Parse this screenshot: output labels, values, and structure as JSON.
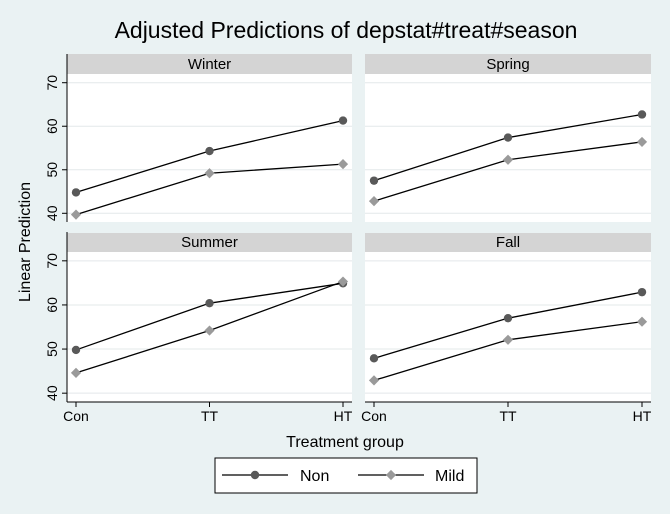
{
  "chart_data": {
    "type": "line",
    "title": "Adjusted Predictions of depstat#treat#season",
    "xlabel": "Treatment group",
    "ylabel": "Linear Prediction",
    "categories": [
      "Con",
      "TT",
      "HT"
    ],
    "yticks": [
      40,
      50,
      60,
      70
    ],
    "ylim": [
      38,
      72
    ],
    "grid": true,
    "legend_position": "bottom",
    "colors": {
      "Non": "#595959",
      "Mild": "#9a9a9a",
      "line": "#000000",
      "panel_header": "#d4d4d4",
      "outer_background": "#eaf2f3",
      "plot_background": "#ffffff"
    },
    "series_names": [
      "Non",
      "Mild"
    ],
    "panels": [
      {
        "title": "Winter",
        "series": [
          {
            "name": "Non",
            "values": [
              44.8,
              54.3,
              61.3
            ]
          },
          {
            "name": "Mild",
            "values": [
              39.7,
              49.2,
              51.3
            ]
          }
        ]
      },
      {
        "title": "Spring",
        "series": [
          {
            "name": "Non",
            "values": [
              47.5,
              57.4,
              62.7
            ]
          },
          {
            "name": "Mild",
            "values": [
              42.8,
              52.3,
              56.4
            ]
          }
        ]
      },
      {
        "title": "Summer",
        "series": [
          {
            "name": "Non",
            "values": [
              49.8,
              60.4,
              64.9
            ]
          },
          {
            "name": "Mild",
            "values": [
              44.6,
              54.2,
              65.3
            ]
          }
        ]
      },
      {
        "title": "Fall",
        "series": [
          {
            "name": "Non",
            "values": [
              47.9,
              57.0,
              62.9
            ]
          },
          {
            "name": "Mild",
            "values": [
              42.9,
              52.1,
              56.2
            ]
          }
        ]
      }
    ]
  }
}
